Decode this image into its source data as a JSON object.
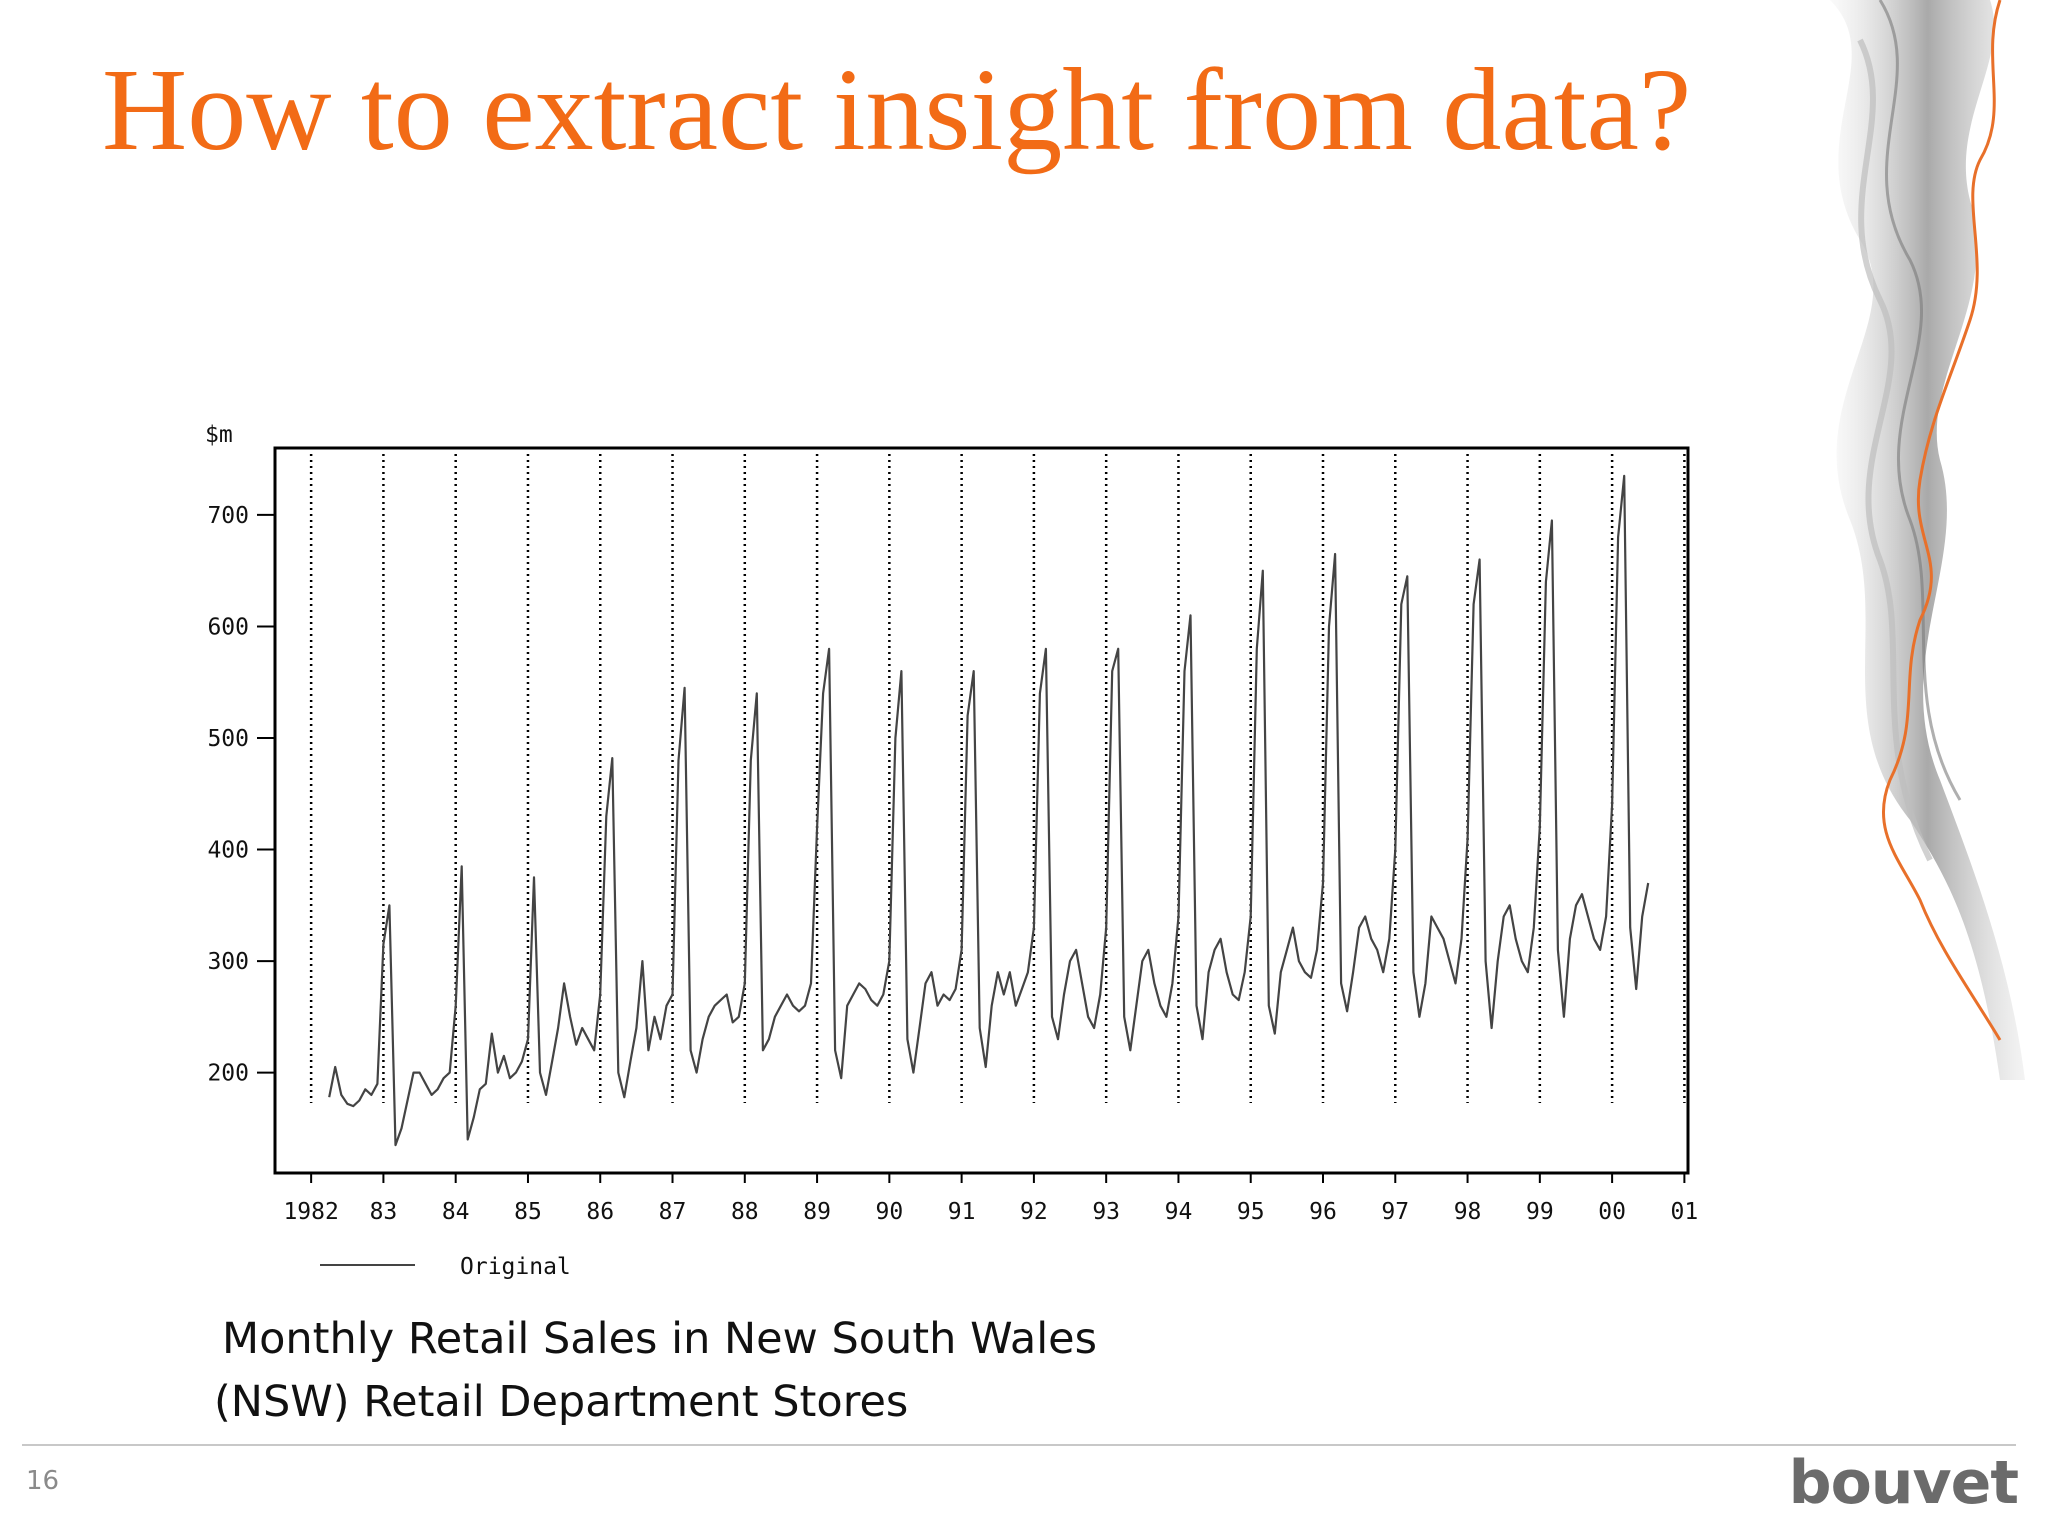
{
  "slide": {
    "title": "How to extract insight from data?",
    "title_color": "#F26B16",
    "caption_lines": [
      "Monthly Retail Sales in New South Wales",
      "(NSW) Retail Department Stores"
    ],
    "page_number": "16",
    "brand": "bouvet",
    "accent_color": "#E8702A"
  },
  "chart_data": {
    "type": "line",
    "title": "",
    "xlabel": "",
    "ylabel": "$m",
    "y_ticks": [
      200,
      300,
      400,
      500,
      600,
      700
    ],
    "ylim": [
      110,
      760
    ],
    "x_tick_labels": [
      "1982",
      "83",
      "84",
      "85",
      "86",
      "87",
      "88",
      "89",
      "90",
      "91",
      "92",
      "93",
      "94",
      "95",
      "96",
      "97",
      "98",
      "99",
      "00",
      "01"
    ],
    "x_tick_values": [
      1982,
      1983,
      1984,
      1985,
      1986,
      1987,
      1988,
      1989,
      1990,
      1991,
      1992,
      1993,
      1994,
      1995,
      1996,
      1997,
      1998,
      1999,
      2000,
      2001
    ],
    "xlim": [
      1981.5,
      2001.05
    ],
    "grid": "vertical dotted lines at each year",
    "legend": {
      "position": "bottom-left",
      "entries": [
        "Original"
      ]
    },
    "series": [
      {
        "name": "Original",
        "start": "1982-04",
        "frequency": "monthly",
        "values": [
          178,
          205,
          180,
          172,
          170,
          175,
          185,
          180,
          190,
          315,
          350,
          135,
          150,
          175,
          200,
          200,
          190,
          180,
          185,
          195,
          200,
          260,
          385,
          140,
          160,
          185,
          190,
          235,
          200,
          215,
          195,
          200,
          210,
          230,
          375,
          200,
          180,
          210,
          240,
          280,
          250,
          225,
          240,
          230,
          220,
          270,
          430,
          482,
          200,
          178,
          210,
          240,
          300,
          220,
          250,
          230,
          260,
          270,
          480,
          545,
          220,
          200,
          230,
          250,
          260,
          265,
          270,
          245,
          250,
          280,
          480,
          540,
          220,
          230,
          250,
          260,
          270,
          260,
          255,
          260,
          280,
          420,
          540,
          580,
          220,
          195,
          260,
          270,
          280,
          275,
          265,
          260,
          270,
          300,
          500,
          560,
          230,
          200,
          240,
          280,
          290,
          260,
          270,
          265,
          275,
          310,
          520,
          560,
          240,
          205,
          260,
          290,
          270,
          290,
          260,
          275,
          290,
          330,
          540,
          580,
          250,
          230,
          270,
          300,
          310,
          280,
          250,
          240,
          270,
          330,
          560,
          580,
          250,
          220,
          260,
          300,
          310,
          280,
          260,
          250,
          280,
          340,
          560,
          610,
          260,
          230,
          290,
          310,
          320,
          290,
          270,
          265,
          290,
          340,
          580,
          650,
          260,
          235,
          290,
          310,
          330,
          300,
          290,
          285,
          310,
          370,
          600,
          665,
          280,
          255,
          290,
          330,
          340,
          320,
          310,
          290,
          320,
          400,
          620,
          645,
          290,
          250,
          280,
          340,
          330,
          320,
          300,
          280,
          320,
          410,
          620,
          660,
          300,
          240,
          300,
          340,
          350,
          320,
          300,
          290,
          330,
          420,
          640,
          695,
          310,
          250,
          320,
          350,
          360,
          340,
          320,
          310,
          340,
          440,
          680,
          735,
          330,
          275,
          340,
          370
        ]
      }
    ]
  }
}
